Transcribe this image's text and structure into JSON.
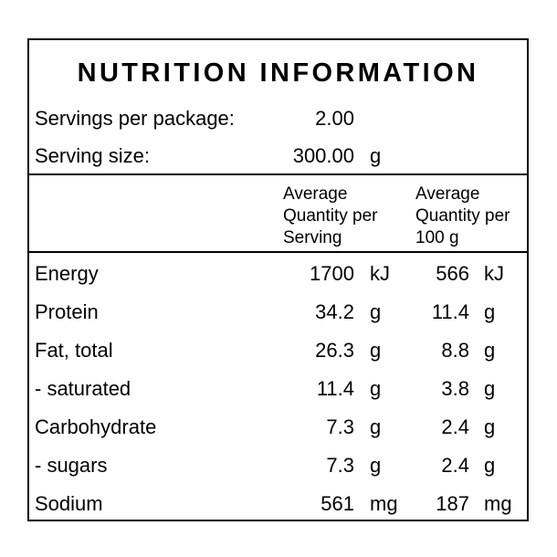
{
  "title": "NUTRITION INFORMATION",
  "servings": {
    "label": "Servings per package:",
    "value": "2.00"
  },
  "serving_size": {
    "label": "Serving size:",
    "value": "300.00",
    "unit": "g"
  },
  "columns": {
    "per_serving": [
      "Average",
      "Quantity per",
      "Serving"
    ],
    "per_100g": [
      "Average",
      "Quantity per",
      "100 g"
    ]
  },
  "nutrients": [
    {
      "name": "Energy",
      "serving_value": "1700",
      "serving_unit": "kJ",
      "per100_value": "566",
      "per100_unit": "kJ"
    },
    {
      "name": "Protein",
      "serving_value": "34.2",
      "serving_unit": "g",
      "per100_value": "11.4",
      "per100_unit": "g"
    },
    {
      "name": "Fat, total",
      "serving_value": "26.3",
      "serving_unit": "g",
      "per100_value": "8.8",
      "per100_unit": "g"
    },
    {
      "name": "- saturated",
      "serving_value": "11.4",
      "serving_unit": "g",
      "per100_value": "3.8",
      "per100_unit": "g"
    },
    {
      "name": "Carbohydrate",
      "serving_value": "7.3",
      "serving_unit": "g",
      "per100_value": "2.4",
      "per100_unit": "g"
    },
    {
      "name": "- sugars",
      "serving_value": "7.3",
      "serving_unit": "g",
      "per100_value": "2.4",
      "per100_unit": "g"
    },
    {
      "name": "Sodium",
      "serving_value": "561",
      "serving_unit": "mg",
      "per100_value": "187",
      "per100_unit": "mg"
    }
  ]
}
